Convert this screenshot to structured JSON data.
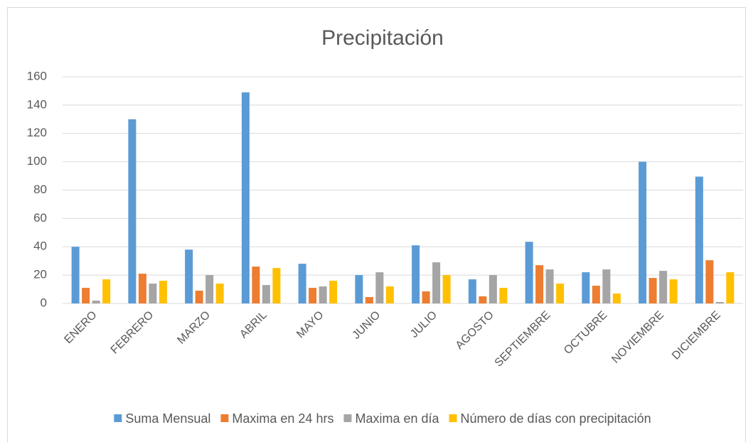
{
  "chart_data": {
    "type": "bar",
    "title": "Precipitación",
    "categories": [
      "ENERO",
      "FEBRERO",
      "MARZO",
      "ABRIL",
      "MAYO",
      "JUNIO",
      "JULIO",
      "AGOSTO",
      "SEPTIEMBRE",
      "OCTUBRE",
      "NOVIEMBRE",
      "DICIEMBRE"
    ],
    "series": [
      {
        "name": "Suma Mensual",
        "color": "#5b9bd5",
        "values": [
          40,
          130,
          38,
          149,
          28,
          20,
          41,
          17,
          43.5,
          22,
          100,
          89.5
        ]
      },
      {
        "name": "Maxima en 24 hrs",
        "color": "#ed7d31",
        "values": [
          11,
          21,
          9,
          26,
          11,
          4.5,
          8.5,
          5,
          27,
          12.5,
          18,
          30.5
        ]
      },
      {
        "name": "Maxima en día",
        "color": "#a5a5a5",
        "values": [
          2,
          14,
          20,
          13,
          12,
          22,
          29,
          20,
          24,
          24,
          23,
          1
        ]
      },
      {
        "name": "Número de días con precipitación",
        "color": "#ffc000",
        "values": [
          17,
          16,
          14,
          25,
          16,
          12,
          20,
          11,
          14,
          7,
          17,
          22
        ]
      }
    ],
    "ylim": [
      0,
      160
    ],
    "yticks": [
      0,
      20,
      40,
      60,
      80,
      100,
      120,
      140,
      160
    ],
    "grid": true,
    "legend": "bottom"
  }
}
